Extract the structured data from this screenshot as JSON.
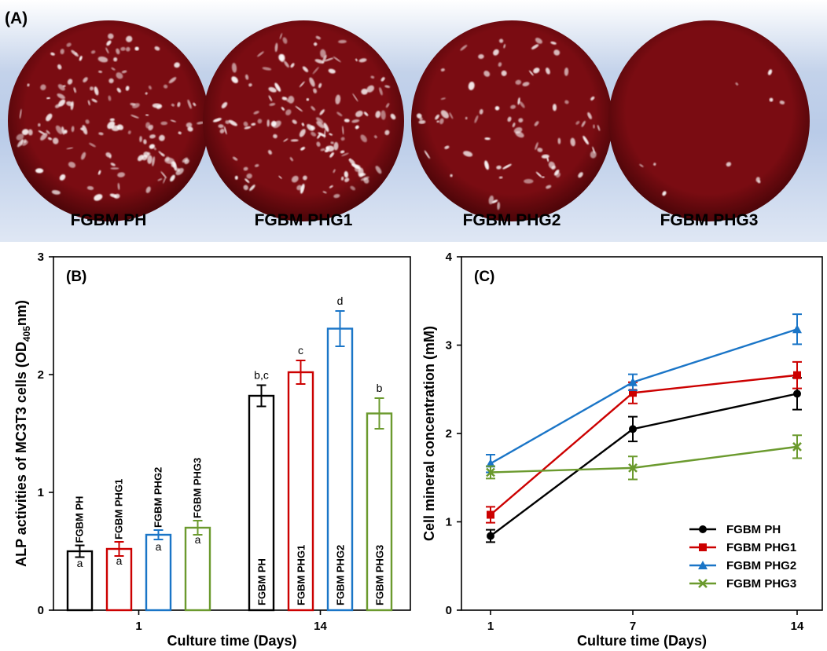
{
  "panelA": {
    "label": "(A)",
    "dishes": [
      {
        "name": "FGBM PH",
        "highlight": "heavy"
      },
      {
        "name": "FGBM PHG1",
        "highlight": "heavy"
      },
      {
        "name": "FGBM PHG2",
        "highlight": "medium"
      },
      {
        "name": "FGBM PHG3",
        "highlight": "minimal"
      }
    ],
    "colors": {
      "stain": "#7a0c12",
      "stain_dark": "#4a0508",
      "highlight": "#ffffff"
    }
  },
  "chart_data": [
    {
      "type": "bar",
      "panel_label": "(B)",
      "ylabel_main": "ALP activities of MC3T3 cells (OD",
      "ylabel_sub": "405",
      "ylabel_end": "nm)",
      "xlabel": "Culture time (Days)",
      "ylim": [
        0,
        3
      ],
      "yticks": [
        "0",
        "1",
        "2",
        "3"
      ],
      "categories": [
        "1",
        "14"
      ],
      "series": [
        {
          "name": "FGBM PH",
          "color": "#000000",
          "values": [
            0.5,
            1.82
          ],
          "errors": [
            0.05,
            0.09
          ],
          "letters": [
            "a",
            "b,c"
          ]
        },
        {
          "name": "FGBM PHG1",
          "color": "#cc0000",
          "values": [
            0.52,
            2.02
          ],
          "errors": [
            0.06,
            0.1
          ],
          "letters": [
            "a",
            "c"
          ]
        },
        {
          "name": "FGBM PHG2",
          "color": "#1a75c7",
          "values": [
            0.64,
            2.39
          ],
          "errors": [
            0.04,
            0.15
          ],
          "letters": [
            "a",
            "d"
          ]
        },
        {
          "name": "FGBM PHG3",
          "color": "#6b9a2e",
          "values": [
            0.7,
            1.67
          ],
          "errors": [
            0.06,
            0.13
          ],
          "letters": [
            "a",
            "b"
          ]
        }
      ]
    },
    {
      "type": "line",
      "panel_label": "(C)",
      "ylabel": "Cell mineral concentration (mM)",
      "xlabel": "Culture time (Days)",
      "ylim": [
        0,
        4
      ],
      "yticks": [
        "0",
        "1",
        "2",
        "3",
        "4"
      ],
      "categories": [
        "1",
        "7",
        "14"
      ],
      "legend_position": "bottom-right",
      "series": [
        {
          "name": "FGBM PH",
          "color": "#000000",
          "marker": "circle",
          "values": [
            0.84,
            2.05,
            2.45
          ],
          "errors": [
            0.07,
            0.14,
            0.18
          ]
        },
        {
          "name": "FGBM PHG1",
          "color": "#cc0000",
          "marker": "square",
          "values": [
            1.08,
            2.46,
            2.66
          ],
          "errors": [
            0.09,
            0.12,
            0.15
          ]
        },
        {
          "name": "FGBM PHG2",
          "color": "#1a75c7",
          "marker": "triangle",
          "values": [
            1.66,
            2.58,
            3.18
          ],
          "errors": [
            0.1,
            0.09,
            0.17
          ]
        },
        {
          "name": "FGBM PHG3",
          "color": "#6b9a2e",
          "marker": "x",
          "values": [
            1.56,
            1.61,
            1.85
          ],
          "errors": [
            0.07,
            0.13,
            0.13
          ]
        }
      ]
    }
  ]
}
